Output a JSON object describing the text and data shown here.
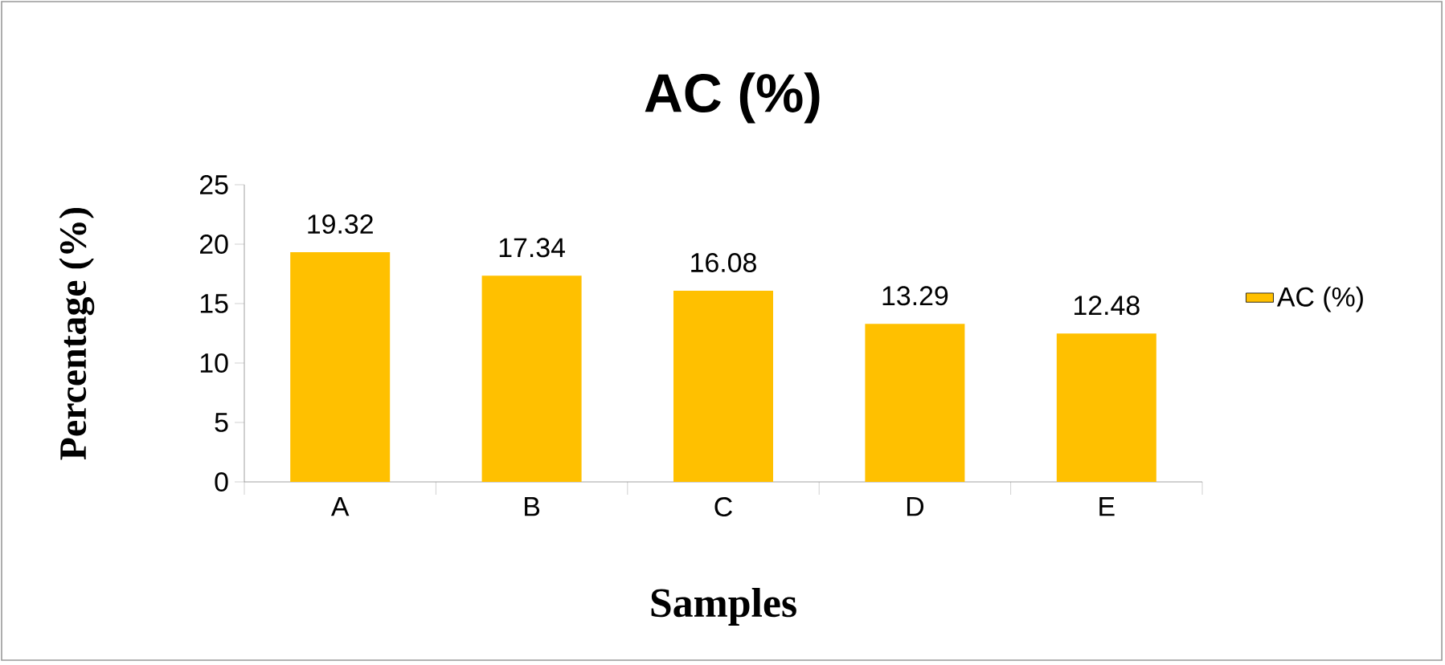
{
  "chart_data": {
    "type": "bar",
    "title": "AC (%)",
    "xlabel": "Samples",
    "ylabel": "Percentage (%)",
    "categories": [
      "A",
      "B",
      "C",
      "D",
      "E"
    ],
    "series": [
      {
        "name": "AC (%)",
        "color": "#ffc000",
        "values": [
          19.32,
          17.34,
          16.08,
          13.29,
          12.48
        ]
      }
    ],
    "ylim": [
      0,
      25
    ],
    "yticks": [
      0,
      5,
      10,
      15,
      20,
      25
    ],
    "data_labels": true,
    "legend": "right",
    "grid": false
  }
}
